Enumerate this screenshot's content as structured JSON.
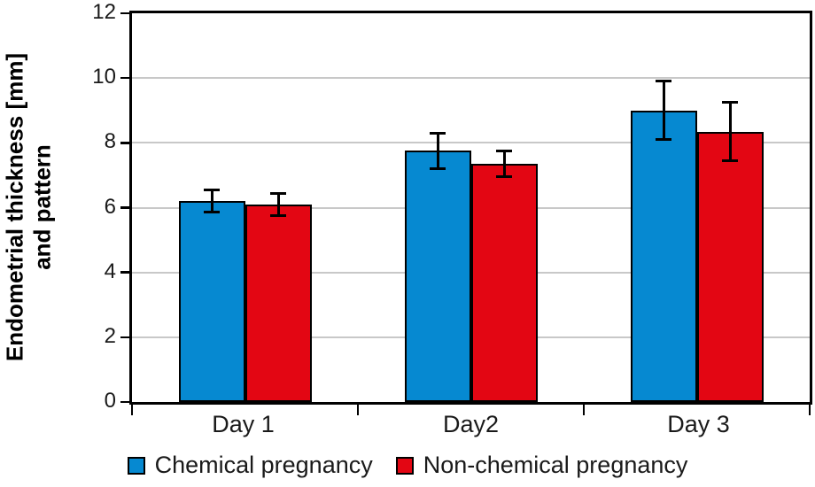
{
  "figure": {
    "background": "#ffffff"
  },
  "chart_data": {
    "type": "bar",
    "title": "",
    "ylabel_line1": "Endometrial thickness [mm]",
    "ylabel_line2": "and pattern",
    "categories": [
      "Day 1",
      "Day2",
      "Day 3"
    ],
    "series": [
      {
        "name": "Chemical pregnancy",
        "color": "#0689d1",
        "values": [
          6.2,
          7.75,
          9.0
        ],
        "errors": [
          0.35,
          0.55,
          0.9
        ]
      },
      {
        "name": "Non-chemical pregnancy",
        "color": "#e30613",
        "values": [
          6.1,
          7.35,
          8.35
        ],
        "errors": [
          0.35,
          0.4,
          0.9
        ]
      }
    ],
    "ylim": [
      0,
      12
    ],
    "yticks": [
      0,
      2,
      4,
      6,
      8,
      10,
      12
    ],
    "grid": true,
    "gridline_color": "#c8c8c8",
    "axis_color": "#000000",
    "legend_position": "bottom"
  }
}
